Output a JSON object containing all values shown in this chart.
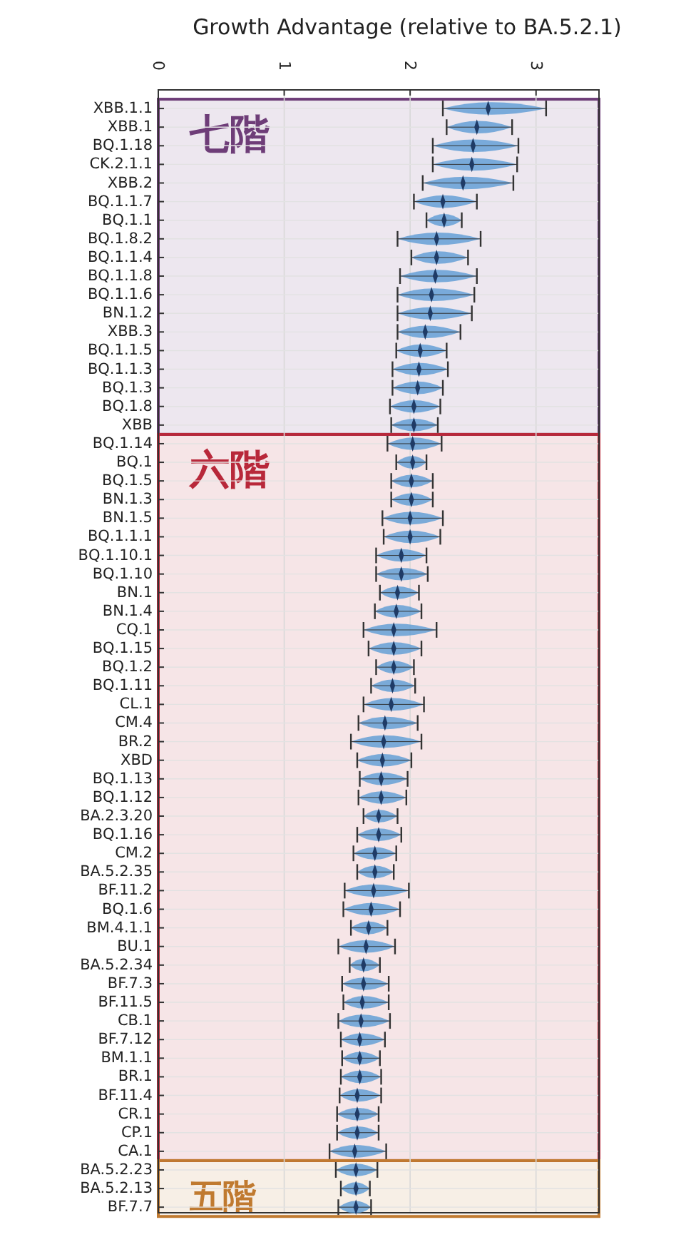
{
  "chart_data": {
    "type": "scatter",
    "orientation": "horizontal",
    "title": "Growth Advantage (relative to BA.5.2.1)",
    "marker": "diamond",
    "color": "#1f3b66",
    "grid": true,
    "xlim": [
      0,
      3.5
    ],
    "xticks": [
      0,
      1,
      2,
      3
    ],
    "categories": [
      "XBB.1.1",
      "XBB.1",
      "BQ.1.18",
      "CK.2.1.1",
      "XBB.2",
      "BQ.1.1.7",
      "BQ.1.1",
      "BQ.1.8.2",
      "BQ.1.1.4",
      "BQ.1.1.8",
      "BQ.1.1.6",
      "BN.1.2",
      "XBB.3",
      "BQ.1.1.5",
      "BQ.1.1.3",
      "BQ.1.3",
      "BQ.1.8",
      "XBB",
      "BQ.1.14",
      "BQ.1",
      "BQ.1.5",
      "BN.1.3",
      "BN.1.5",
      "BQ.1.1.1",
      "BQ.1.10.1",
      "BQ.1.10",
      "BN.1",
      "BN.1.4",
      "CQ.1",
      "BQ.1.15",
      "BQ.1.2",
      "BQ.1.11",
      "CL.1",
      "CM.4",
      "BR.2",
      "XBD",
      "BQ.1.13",
      "BQ.1.12",
      "BA.2.3.20",
      "BQ.1.16",
      "CM.2",
      "BA.5.2.35",
      "BF.11.2",
      "BQ.1.6",
      "BM.4.1.1",
      "BU.1",
      "BA.5.2.34",
      "BF.7.3",
      "BF.11.5",
      "CB.1",
      "BF.7.12",
      "BM.1.1",
      "BR.1",
      "BF.11.4",
      "CR.1",
      "CP.1",
      "CA.1",
      "BA.5.2.23",
      "BA.5.2.13",
      "BF.7.7"
    ],
    "values": [
      2.62,
      2.53,
      2.5,
      2.49,
      2.42,
      2.26,
      2.27,
      2.21,
      2.21,
      2.2,
      2.17,
      2.16,
      2.12,
      2.08,
      2.07,
      2.06,
      2.03,
      2.03,
      2.02,
      2.02,
      2.01,
      2.01,
      2.0,
      2.0,
      1.93,
      1.93,
      1.9,
      1.89,
      1.87,
      1.87,
      1.87,
      1.86,
      1.85,
      1.8,
      1.79,
      1.78,
      1.77,
      1.77,
      1.75,
      1.75,
      1.72,
      1.72,
      1.71,
      1.69,
      1.67,
      1.65,
      1.63,
      1.63,
      1.62,
      1.61,
      1.6,
      1.6,
      1.6,
      1.58,
      1.58,
      1.58,
      1.56,
      1.57,
      1.57,
      1.57
    ],
    "errors": [
      [
        2.26,
        3.08
      ],
      [
        2.29,
        2.81
      ],
      [
        2.18,
        2.86
      ],
      [
        2.18,
        2.85
      ],
      [
        2.1,
        2.82
      ],
      [
        2.03,
        2.53
      ],
      [
        2.13,
        2.41
      ],
      [
        1.9,
        2.56
      ],
      [
        2.01,
        2.46
      ],
      [
        1.92,
        2.53
      ],
      [
        1.9,
        2.51
      ],
      [
        1.9,
        2.49
      ],
      [
        1.9,
        2.4
      ],
      [
        1.89,
        2.29
      ],
      [
        1.86,
        2.3
      ],
      [
        1.86,
        2.26
      ],
      [
        1.84,
        2.24
      ],
      [
        1.85,
        2.22
      ],
      [
        1.82,
        2.25
      ],
      [
        1.89,
        2.13
      ],
      [
        1.85,
        2.18
      ],
      [
        1.85,
        2.18
      ],
      [
        1.78,
        2.26
      ],
      [
        1.79,
        2.24
      ],
      [
        1.73,
        2.13
      ],
      [
        1.73,
        2.14
      ],
      [
        1.76,
        2.07
      ],
      [
        1.72,
        2.09
      ],
      [
        1.63,
        2.21
      ],
      [
        1.67,
        2.09
      ],
      [
        1.73,
        2.03
      ],
      [
        1.69,
        2.04
      ],
      [
        1.63,
        2.11
      ],
      [
        1.59,
        2.06
      ],
      [
        1.53,
        2.09
      ],
      [
        1.58,
        2.01
      ],
      [
        1.6,
        1.98
      ],
      [
        1.59,
        1.97
      ],
      [
        1.63,
        1.9
      ],
      [
        1.58,
        1.93
      ],
      [
        1.55,
        1.89
      ],
      [
        1.58,
        1.87
      ],
      [
        1.48,
        1.99
      ],
      [
        1.47,
        1.92
      ],
      [
        1.53,
        1.82
      ],
      [
        1.43,
        1.88
      ],
      [
        1.52,
        1.76
      ],
      [
        1.46,
        1.83
      ],
      [
        1.47,
        1.83
      ],
      [
        1.43,
        1.84
      ],
      [
        1.45,
        1.8
      ],
      [
        1.46,
        1.76
      ],
      [
        1.45,
        1.77
      ],
      [
        1.44,
        1.77
      ],
      [
        1.42,
        1.75
      ],
      [
        1.42,
        1.75
      ],
      [
        1.36,
        1.81
      ],
      [
        1.41,
        1.74
      ],
      [
        1.45,
        1.68
      ],
      [
        1.43,
        1.69
      ]
    ],
    "bands": [
      {
        "axis": "y",
        "from": "XBB.1.1",
        "to": "XBB",
        "label": "七階",
        "color": "#6e3d78"
      },
      {
        "axis": "y",
        "from": "BQ.1.14",
        "to": "CA.1",
        "label": "六階",
        "color": "#b8283a"
      },
      {
        "axis": "y",
        "from": "BA.5.2.23",
        "to": "BF.7.7",
        "label": "五階",
        "color": "#c07a30"
      }
    ]
  }
}
